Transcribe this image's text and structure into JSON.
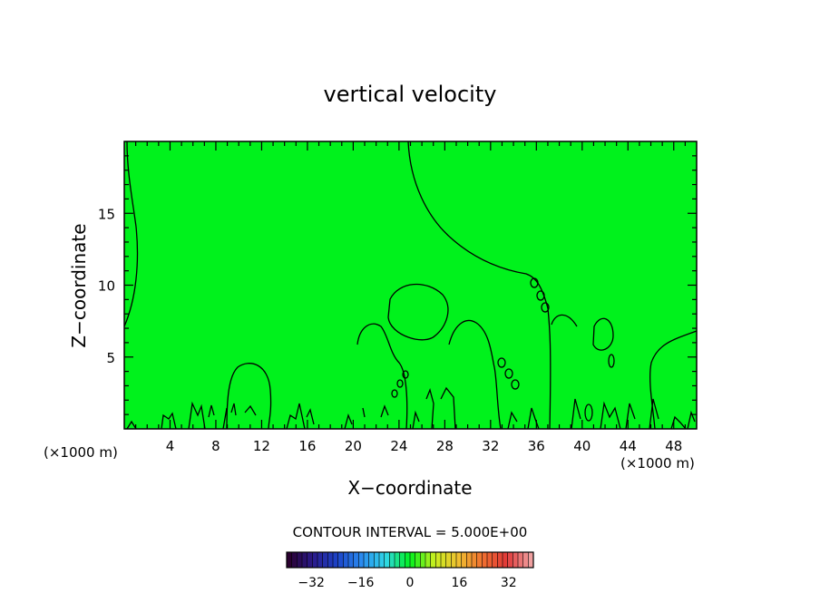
{
  "chart_data": {
    "type": "heatmap",
    "title": "vertical velocity",
    "xlabel": "X−coordinate",
    "ylabel": "Z−coordinate",
    "x_unit_left": "(×1000 m)",
    "x_unit_right": "(×1000 m)",
    "xlim": [
      0,
      50
    ],
    "ylim": [
      0,
      20
    ],
    "xticks": [
      4,
      8,
      12,
      16,
      20,
      24,
      28,
      32,
      36,
      40,
      44,
      48
    ],
    "yticks": [
      5,
      10,
      15
    ],
    "field_color": "#00f21c",
    "contour_interval_label": "CONTOUR INTERVAL = 5.000E+00",
    "colorbar": {
      "range": [
        -40,
        40
      ],
      "ticks": [
        -32,
        -16,
        0,
        16,
        32
      ],
      "colors": [
        "#2a0030",
        "#2a1a8c",
        "#1c44c8",
        "#2a8cf0",
        "#30d8e8",
        "#00f21c",
        "#c8f020",
        "#f0c030",
        "#f07030",
        "#e03838",
        "#f0a0a0"
      ]
    }
  }
}
